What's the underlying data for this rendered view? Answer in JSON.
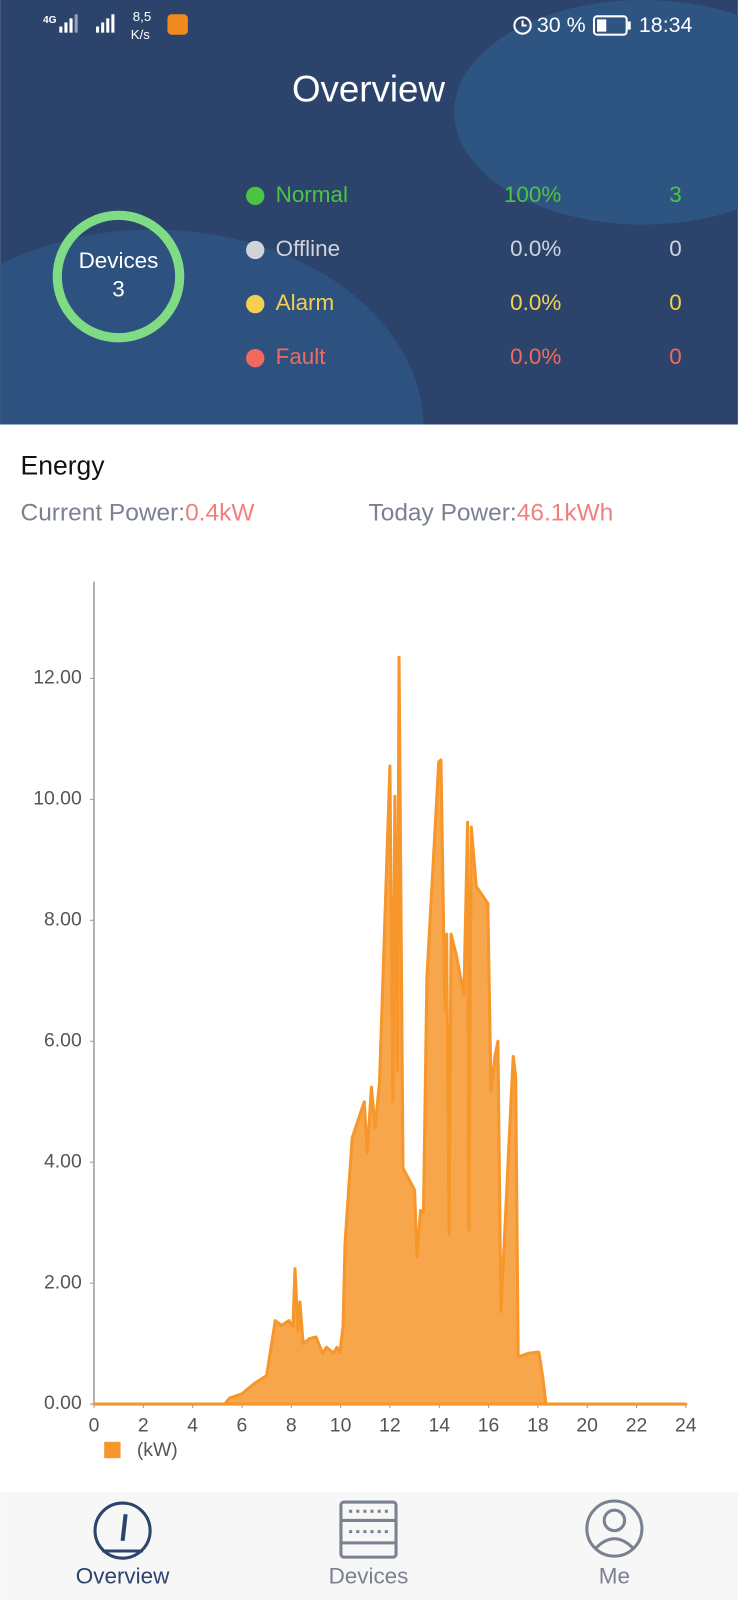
{
  "status_bar": {
    "network": "4G",
    "speed": "8,5",
    "speed_unit": "K/s",
    "battery": "30 %",
    "time": "18:34"
  },
  "header": {
    "title": "Overview"
  },
  "devices": {
    "label": "Devices",
    "count": 3
  },
  "status_rows": [
    {
      "name": "Normal",
      "percent": "100%",
      "count": 3,
      "color": "#4cc443"
    },
    {
      "name": "Offline",
      "percent": "0.0%",
      "count": 0,
      "color": "#d0d3d9"
    },
    {
      "name": "Alarm",
      "percent": "0.0%",
      "count": 0,
      "color": "#f5d050"
    },
    {
      "name": "Fault",
      "percent": "0.0%",
      "count": 0,
      "color": "#f26a5e"
    }
  ],
  "energy": {
    "title": "Energy",
    "current_label": "Current Power:",
    "current_value": "0.4kW",
    "today_label": "Today Power:",
    "today_value": "46.1kWh"
  },
  "chart_data": {
    "type": "area",
    "x": [
      0,
      5.3,
      5.5,
      6.0,
      6.5,
      7.0,
      7.35,
      7.6,
      7.9,
      8.07,
      8.15,
      8.27,
      8.35,
      8.48,
      8.73,
      9.0,
      9.27,
      9.43,
      9.72,
      9.85,
      9.97,
      10.1,
      10.18,
      10.47,
      10.96,
      11.08,
      11.25,
      11.4,
      11.58,
      12.0,
      12.12,
      12.2,
      12.3,
      12.37,
      12.53,
      13.0,
      13.1,
      13.24,
      13.36,
      13.5,
      13.98,
      14.07,
      14.23,
      14.3,
      14.4,
      14.48,
      14.69,
      15.0,
      15.15,
      15.2,
      15.3,
      15.5,
      15.97,
      16.1,
      16.26,
      16.38,
      16.5,
      17.0,
      17.1,
      17.2,
      17.62,
      18.04,
      18.2,
      18.33,
      24
    ],
    "series": [
      {
        "name": "(kW)",
        "color": "#f7962b",
        "values": [
          0,
          0,
          0.1,
          0.17,
          0.34,
          0.47,
          1.38,
          1.3,
          1.38,
          1.28,
          2.24,
          1.2,
          1.69,
          1.0,
          1.08,
          1.11,
          0.84,
          0.94,
          0.84,
          0.94,
          0.86,
          1.28,
          2.66,
          4.4,
          5.0,
          4.15,
          5.24,
          4.57,
          5.33,
          10.55,
          5.0,
          10.05,
          5.5,
          12.35,
          3.9,
          3.54,
          2.43,
          3.2,
          3.17,
          7.05,
          10.62,
          10.65,
          6.5,
          7.77,
          2.8,
          7.77,
          7.43,
          6.76,
          9.62,
          2.88,
          9.54,
          8.56,
          8.28,
          5.16,
          5.75,
          6.0,
          1.53,
          5.75,
          5.41,
          0.78,
          0.84,
          0.86,
          0.44,
          0,
          0
        ]
      }
    ],
    "xlim": [
      0,
      24
    ],
    "xticks": [
      0,
      2,
      4,
      6,
      8,
      10,
      12,
      14,
      16,
      18,
      20,
      22,
      24
    ],
    "ylim": [
      0,
      13.6
    ],
    "yticks": [
      {
        "value": 0,
        "label": "0.00"
      },
      {
        "value": 2,
        "label": "2.00"
      },
      {
        "value": 4,
        "label": "4.00"
      },
      {
        "value": 6,
        "label": "6.00"
      },
      {
        "value": 8,
        "label": "8.00"
      },
      {
        "value": 10,
        "label": "10.00"
      },
      {
        "value": 12,
        "label": "12.00"
      }
    ],
    "grid": false
  },
  "nav": {
    "tabs": [
      "Overview",
      "Devices",
      "Me"
    ]
  }
}
